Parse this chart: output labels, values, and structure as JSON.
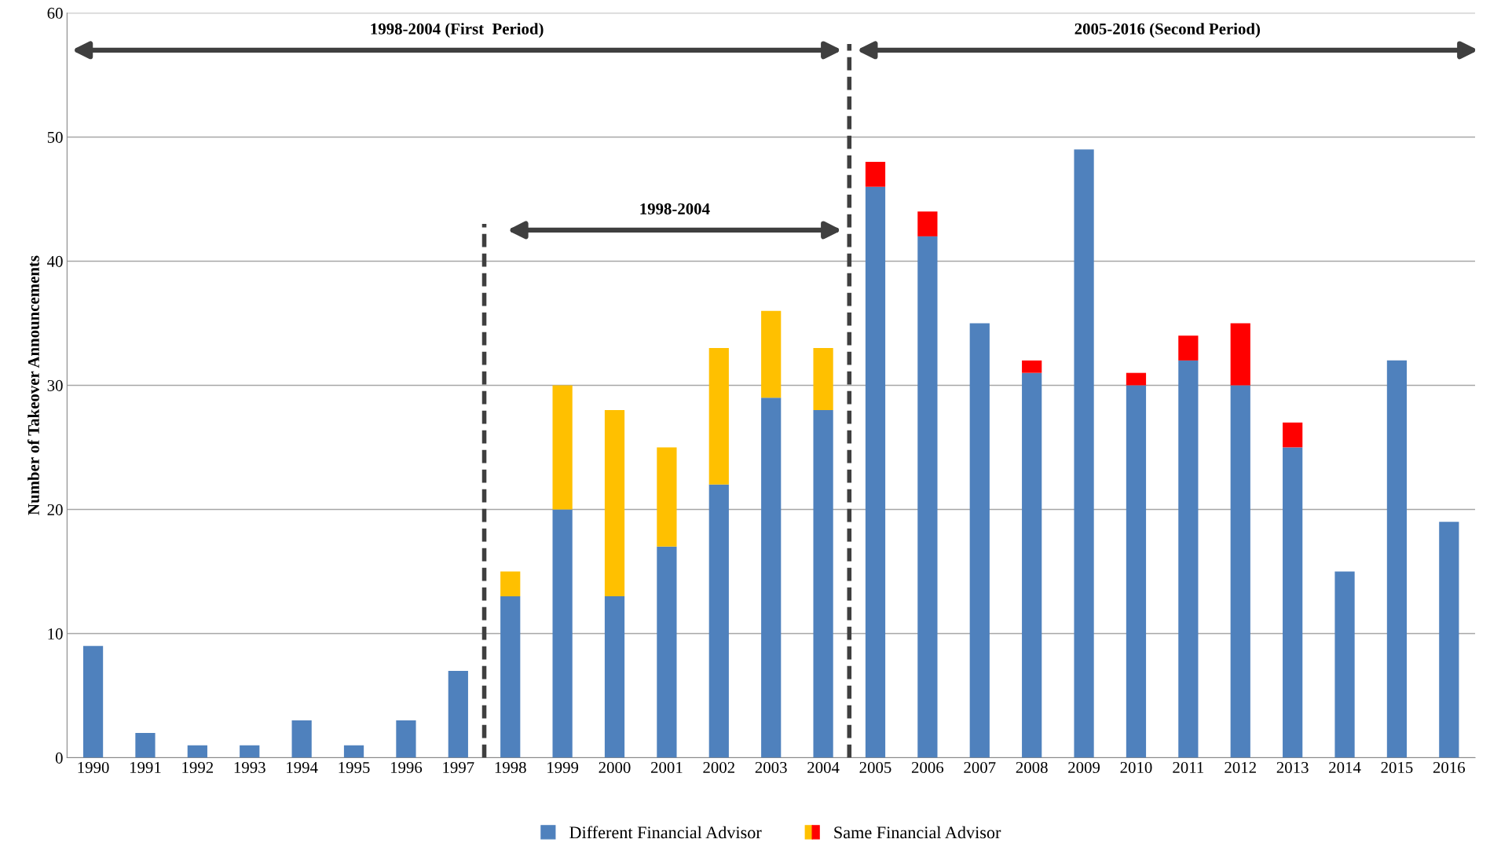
{
  "chart_data": {
    "type": "bar",
    "stacked": true,
    "ylabel": "Number of Takeover Announcements",
    "categories": [
      "1990",
      "1991",
      "1992",
      "1993",
      "1994",
      "1995",
      "1996",
      "1997",
      "1998",
      "1999",
      "2000",
      "2001",
      "2002",
      "2003",
      "2004",
      "2005",
      "2006",
      "2007",
      "2008",
      "2009",
      "2010",
      "2011",
      "2012",
      "2013",
      "2014",
      "2015",
      "2016"
    ],
    "series": [
      {
        "name": "Different Financial Advisor",
        "color": "#4f81bd",
        "values": [
          9,
          2,
          1,
          1,
          3,
          1,
          3,
          7,
          13,
          20,
          13,
          17,
          22,
          29,
          28,
          46,
          42,
          35,
          31,
          49,
          30,
          32,
          30,
          25,
          15,
          32,
          19
        ]
      },
      {
        "name": "Same Financial Advisor",
        "colors": [
          "#ffc000",
          "#ffc000",
          "#ffc000",
          "#ffc000",
          "#ffc000",
          "#ffc000",
          "#ffc000",
          "#ffc000",
          "#ffc000",
          "#ffc000",
          "#ffc000",
          "#ffc000",
          "#ffc000",
          "#ffc000",
          "#ffc000",
          "#ff0000",
          "#ff0000",
          "#ff0000",
          "#ff0000",
          "#ff0000",
          "#ff0000",
          "#ff0000",
          "#ff0000",
          "#ff0000",
          "#ff0000",
          "#ff0000",
          "#ff0000"
        ],
        "values": [
          0,
          0,
          0,
          0,
          0,
          0,
          0,
          0,
          2,
          10,
          15,
          8,
          11,
          7,
          5,
          2,
          2,
          0,
          1,
          0,
          1,
          2,
          5,
          2,
          0,
          0,
          0
        ]
      }
    ],
    "ylim": [
      0,
      60
    ],
    "yticks": [
      0,
      10,
      20,
      30,
      40,
      50,
      60
    ],
    "grid": "y",
    "legend": "bottom",
    "annotations": [
      "1998-2004 (First  Period)",
      "2005-2016 (Second Period)",
      "1998-2004"
    ]
  }
}
